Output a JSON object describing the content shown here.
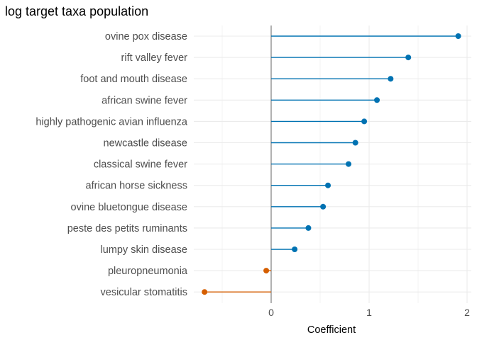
{
  "chart_data": {
    "type": "lollipop",
    "title": "log target taxa population",
    "xlabel": "Coefficient",
    "ylabel": "",
    "xlim": [
      -0.8,
      2.0
    ],
    "xticks": [
      0,
      1,
      2
    ],
    "xtick_labels": [
      "0",
      "1",
      "2"
    ],
    "grid": true,
    "legend": "none",
    "colors": {
      "positive": "#0072b2",
      "negative": "#d55e00",
      "zero_line": "#7f7f7f",
      "grid": "#ebebeb"
    },
    "categories": [
      "ovine pox disease",
      "rift valley fever",
      "foot and mouth disease",
      "african swine fever",
      "highly pathogenic avian influenza",
      "newcastle disease",
      "classical swine fever",
      "african horse sickness",
      "ovine bluetongue disease",
      "peste des petits ruminants",
      "lumpy skin disease",
      "pleuropneumonia",
      "vesicular stomatitis"
    ],
    "values": [
      1.91,
      1.4,
      1.22,
      1.08,
      0.95,
      0.86,
      0.79,
      0.58,
      0.53,
      0.38,
      0.24,
      -0.05,
      -0.68
    ]
  }
}
